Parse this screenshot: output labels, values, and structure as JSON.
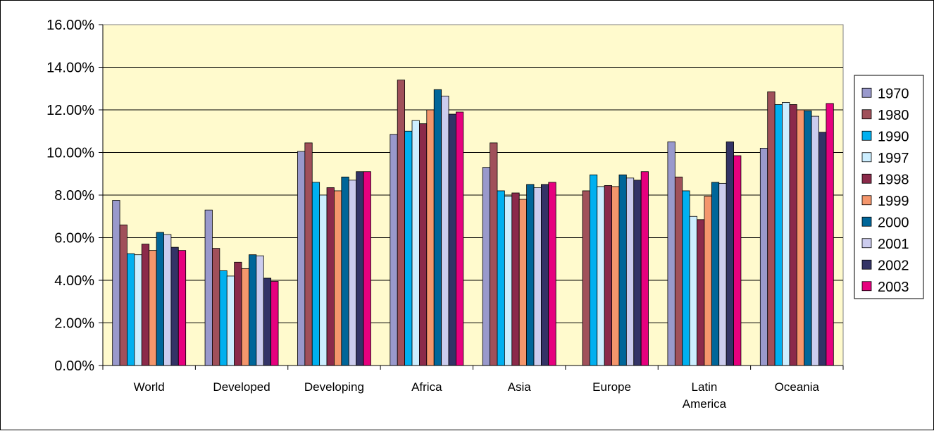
{
  "chart_data": {
    "type": "bar",
    "title": "",
    "xlabel": "",
    "ylabel": "",
    "ylim": [
      0,
      0.16
    ],
    "yticks": [
      "0.00%",
      "2.00%",
      "4.00%",
      "6.00%",
      "8.00%",
      "10.00%",
      "12.00%",
      "14.00%",
      "16.00%"
    ],
    "categories": [
      "World",
      "Developed",
      "Developing",
      "Africa",
      "Asia",
      "Europe",
      "Latin America",
      "Oceania"
    ],
    "category_labels": [
      [
        "World"
      ],
      [
        "Developed"
      ],
      [
        "Developing"
      ],
      [
        "Africa"
      ],
      [
        "Asia"
      ],
      [
        "Europe"
      ],
      [
        "Latin",
        "America"
      ],
      [
        "Oceania"
      ]
    ],
    "legend_position": "right",
    "plot_background": "#FFFACD",
    "series": [
      {
        "name": "1970",
        "color": "#9999CC",
        "values": [
          0.0775,
          0.073,
          0.1005,
          0.1085,
          0.093,
          null,
          0.105,
          0.102
        ]
      },
      {
        "name": "1980",
        "color": "#A0505A",
        "values": [
          0.066,
          0.055,
          0.1045,
          0.134,
          0.1045,
          0.082,
          0.0885,
          0.1285
        ]
      },
      {
        "name": "1990",
        "color": "#00B0F0",
        "values": [
          0.0525,
          0.0445,
          0.086,
          0.11,
          0.082,
          0.0895,
          0.082,
          0.1225
        ]
      },
      {
        "name": "1997",
        "color": "#CCEEFF",
        "values": [
          0.052,
          0.042,
          0.08,
          0.115,
          0.0795,
          0.084,
          0.07,
          0.1235
        ]
      },
      {
        "name": "1998",
        "color": "#8B2A4A",
        "values": [
          0.057,
          0.0485,
          0.0835,
          0.1135,
          0.081,
          0.0845,
          0.0685,
          0.1225
        ]
      },
      {
        "name": "1999",
        "color": "#F4966C",
        "values": [
          0.054,
          0.0455,
          0.082,
          0.12,
          0.078,
          0.084,
          0.0795,
          0.12
        ]
      },
      {
        "name": "2000",
        "color": "#006699",
        "values": [
          0.0625,
          0.052,
          0.0885,
          0.1295,
          0.085,
          0.0895,
          0.086,
          0.1195
        ]
      },
      {
        "name": "2001",
        "color": "#CCCCEE",
        "values": [
          0.0615,
          0.0515,
          0.087,
          0.1265,
          0.0835,
          0.088,
          0.0855,
          0.117
        ]
      },
      {
        "name": "2002",
        "color": "#333366",
        "values": [
          0.0555,
          0.041,
          0.091,
          0.118,
          0.085,
          0.087,
          0.105,
          0.1095
        ]
      },
      {
        "name": "2003",
        "color": "#E6007E",
        "values": [
          0.054,
          0.0395,
          0.091,
          0.119,
          0.086,
          0.091,
          0.0985,
          0.123
        ]
      }
    ]
  }
}
